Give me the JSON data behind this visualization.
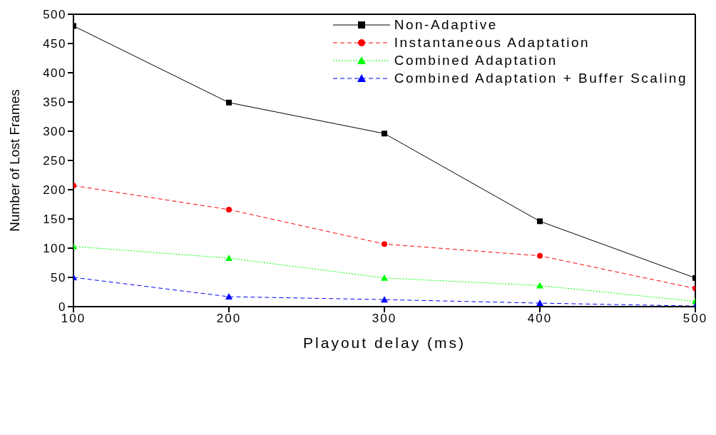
{
  "chart_data": {
    "type": "line",
    "xlabel": "Playout delay (ms)",
    "ylabel": "Number of Lost Frames",
    "x": [
      100,
      200,
      300,
      400,
      500
    ],
    "xlim": [
      100,
      500
    ],
    "xticks": [
      100,
      200,
      300,
      400,
      500
    ],
    "ylim": [
      0,
      500
    ],
    "yticks": [
      0,
      50,
      100,
      150,
      200,
      250,
      300,
      350,
      400,
      450,
      500
    ],
    "grid": false,
    "legend": "top right",
    "series": [
      {
        "name": "Non-Adaptive",
        "color": "#000000",
        "values": [
          480,
          349,
          296,
          146,
          49
        ],
        "marker": "square",
        "line_style": "solid"
      },
      {
        "name": "Instantaneous Adaptation",
        "color": "#ff0000",
        "values": [
          207,
          166,
          107,
          87,
          31
        ],
        "marker": "circle",
        "line_style": "dashed"
      },
      {
        "name": "Combined Adaptation",
        "color": "#00ff00",
        "values": [
          103,
          83,
          49,
          36,
          9
        ],
        "marker": "triangle",
        "line_style": "dotted"
      },
      {
        "name": "Combined Adaptation + Buffer Scaling",
        "color": "#0000ff",
        "values": [
          50,
          17,
          12,
          6,
          1
        ],
        "marker": "triangle",
        "line_style": "dashed"
      }
    ]
  }
}
